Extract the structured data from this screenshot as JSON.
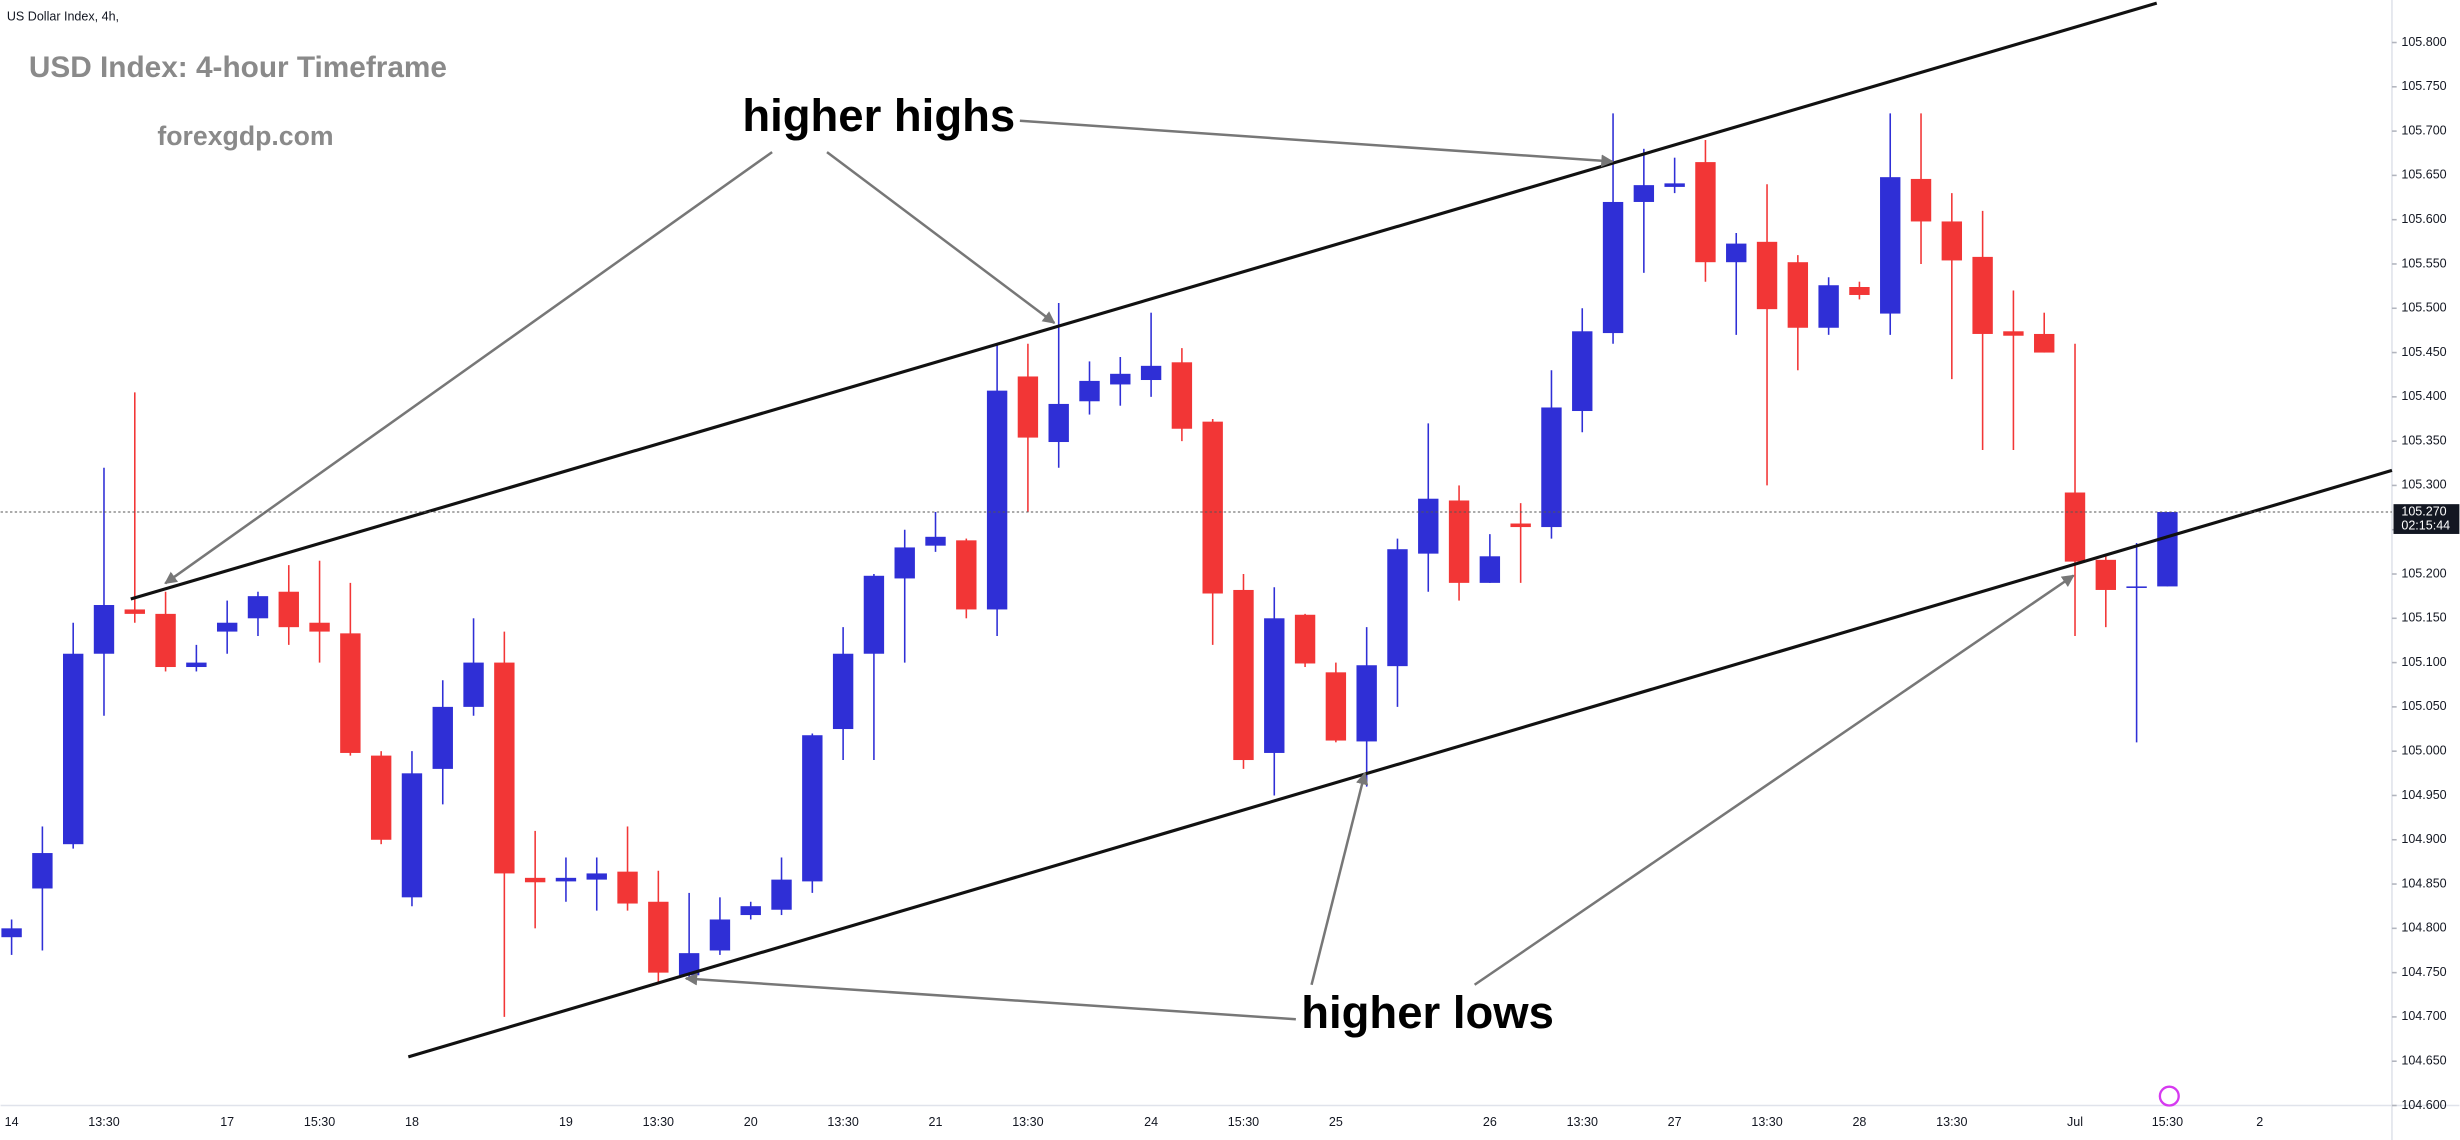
{
  "chart_data": {
    "type": "candlestick",
    "title": "US Dollar Index, 4h,",
    "watermark": "USD Index: 4-hour Timeframe",
    "website": "forexgdp.com",
    "annotations": [
      "higher highs",
      "higher lows"
    ],
    "up_color": "#2f2fd6",
    "down_color": "#f23636",
    "categories": [
      "14",
      null,
      null,
      "13:30",
      null,
      null,
      null,
      "17",
      null,
      null,
      "15:30",
      null,
      null,
      "18",
      null,
      null,
      null,
      null,
      "19",
      null,
      null,
      "13:30",
      null,
      null,
      "20",
      null,
      null,
      "13:30",
      null,
      null,
      "21",
      null,
      null,
      "13:30",
      null,
      null,
      null,
      "24",
      null,
      null,
      "15:30",
      null,
      null,
      "25",
      null,
      null,
      null,
      null,
      "26",
      null,
      null,
      "13:30",
      null,
      null,
      "27",
      null,
      null,
      "13:30",
      null,
      null,
      "28",
      null,
      null,
      "13:30",
      null,
      null,
      null,
      "Jul",
      null,
      null,
      "15:30",
      null,
      null,
      "2",
      null,
      null,
      null,
      null
    ],
    "open": [
      104.79,
      104.845,
      104.895,
      105.11,
      105.16,
      105.155,
      105.095,
      105.135,
      105.15,
      105.18,
      105.145,
      105.133,
      104.995,
      104.835,
      104.98,
      105.05,
      105.1,
      104.857,
      104.853,
      104.855,
      104.864,
      104.83,
      104.747,
      104.775,
      104.815,
      104.821,
      104.853,
      105.025,
      105.11,
      105.195,
      105.232,
      105.238,
      105.16,
      105.423,
      105.349,
      105.395,
      105.414,
      105.419,
      105.439,
      105.372,
      105.182,
      104.998,
      105.154,
      105.089,
      105.011,
      105.096,
      105.223,
      105.283,
      105.19,
      105.257,
      105.253,
      105.384,
      105.472,
      105.62,
      105.637,
      105.665,
      105.552,
      105.575,
      105.552,
      105.478,
      105.524,
      105.494,
      105.646,
      105.598,
      105.558,
      105.474,
      105.471,
      105.292,
      105.216,
      105.186,
      105.186,
      null,
      null,
      null,
      null,
      null,
      null,
      null
    ],
    "high": [
      104.81,
      104.915,
      105.145,
      105.32,
      105.405,
      105.18,
      105.12,
      105.17,
      105.18,
      105.21,
      105.215,
      105.19,
      105.0,
      105.0,
      105.08,
      105.15,
      105.135,
      104.91,
      104.88,
      104.88,
      104.915,
      104.865,
      104.84,
      104.835,
      104.83,
      104.88,
      105.02,
      105.14,
      105.2,
      105.25,
      105.27,
      105.24,
      105.46,
      105.46,
      105.506,
      105.44,
      105.445,
      105.495,
      105.455,
      105.375,
      105.2,
      105.185,
      105.155,
      105.1,
      105.14,
      105.24,
      105.37,
      105.3,
      105.245,
      105.28,
      105.43,
      105.5,
      105.72,
      105.68,
      105.67,
      105.69,
      105.585,
      105.64,
      105.56,
      105.535,
      105.53,
      105.72,
      105.72,
      105.63,
      105.61,
      105.52,
      105.495,
      105.46,
      105.22,
      105.235,
      105.27,
      null,
      null,
      null,
      null,
      null,
      null,
      null
    ],
    "low": [
      104.77,
      104.775,
      104.89,
      105.04,
      105.145,
      105.09,
      105.09,
      105.11,
      105.13,
      105.12,
      105.1,
      104.995,
      104.895,
      104.825,
      104.94,
      105.04,
      104.7,
      104.8,
      104.83,
      104.82,
      104.82,
      104.74,
      104.745,
      104.77,
      104.81,
      104.815,
      104.84,
      104.99,
      104.99,
      105.1,
      105.225,
      105.15,
      105.13,
      105.27,
      105.32,
      105.38,
      105.39,
      105.4,
      105.35,
      105.12,
      104.98,
      104.95,
      105.095,
      105.01,
      104.96,
      105.05,
      105.18,
      105.17,
      105.19,
      105.19,
      105.24,
      105.36,
      105.46,
      105.54,
      105.63,
      105.53,
      105.47,
      105.3,
      105.43,
      105.47,
      105.51,
      105.47,
      105.55,
      105.42,
      105.34,
      105.34,
      105.45,
      105.13,
      105.14,
      105.01,
      105.186,
      null,
      null,
      null,
      null,
      null,
      null,
      null
    ],
    "close": [
      104.8,
      104.885,
      105.11,
      105.165,
      105.155,
      105.095,
      105.1,
      105.145,
      105.175,
      105.14,
      105.135,
      104.998,
      104.9,
      104.975,
      105.05,
      105.1,
      104.862,
      104.852,
      104.857,
      104.862,
      104.828,
      104.75,
      104.772,
      104.81,
      104.825,
      104.855,
      105.018,
      105.11,
      105.198,
      105.23,
      105.242,
      105.16,
      105.407,
      105.354,
      105.392,
      105.418,
      105.426,
      105.435,
      105.364,
      105.178,
      104.99,
      105.15,
      105.099,
      105.012,
      105.097,
      105.228,
      105.285,
      105.19,
      105.22,
      105.253,
      105.388,
      105.474,
      105.62,
      105.639,
      105.641,
      105.552,
      105.573,
      105.499,
      105.478,
      105.526,
      105.515,
      105.648,
      105.598,
      105.554,
      105.471,
      105.469,
      105.45,
      105.214,
      105.182,
      105.186,
      105.27,
      null,
      null,
      null,
      null,
      null,
      null,
      null
    ],
    "ylim": [
      104.6,
      105.848
    ],
    "yticks": [
      {
        "value": 104.6,
        "label": "104.600"
      },
      {
        "value": 104.65,
        "label": "104.650"
      },
      {
        "value": 104.7,
        "label": "104.700"
      },
      {
        "value": 104.75,
        "label": "104.750"
      },
      {
        "value": 104.8,
        "label": "104.800"
      },
      {
        "value": 104.85,
        "label": "104.850"
      },
      {
        "value": 104.9,
        "label": "104.900"
      },
      {
        "value": 104.95,
        "label": "104.950"
      },
      {
        "value": 105.0,
        "label": "105.000"
      },
      {
        "value": 105.05,
        "label": "105.050"
      },
      {
        "value": 105.1,
        "label": "105.100"
      },
      {
        "value": 105.15,
        "label": "105.150"
      },
      {
        "value": 105.2,
        "label": "105.200"
      },
      {
        "value": 105.25,
        "label": "105.250"
      },
      {
        "value": 105.3,
        "label": "105.300"
      },
      {
        "value": 105.35,
        "label": "105.350"
      },
      {
        "value": 105.4,
        "label": "105.400"
      },
      {
        "value": 105.45,
        "label": "105.450"
      },
      {
        "value": 105.5,
        "label": "105.500"
      },
      {
        "value": 105.55,
        "label": "105.550"
      },
      {
        "value": 105.6,
        "label": "105.600"
      },
      {
        "value": 105.65,
        "label": "105.650"
      },
      {
        "value": 105.7,
        "label": "105.700"
      },
      {
        "value": 105.75,
        "label": "105.750"
      },
      {
        "value": 105.8,
        "label": "105.800"
      }
    ],
    "last_price": {
      "value": 105.27,
      "label": "105.270"
    },
    "countdown": "02:15:44",
    "grid": false
  }
}
